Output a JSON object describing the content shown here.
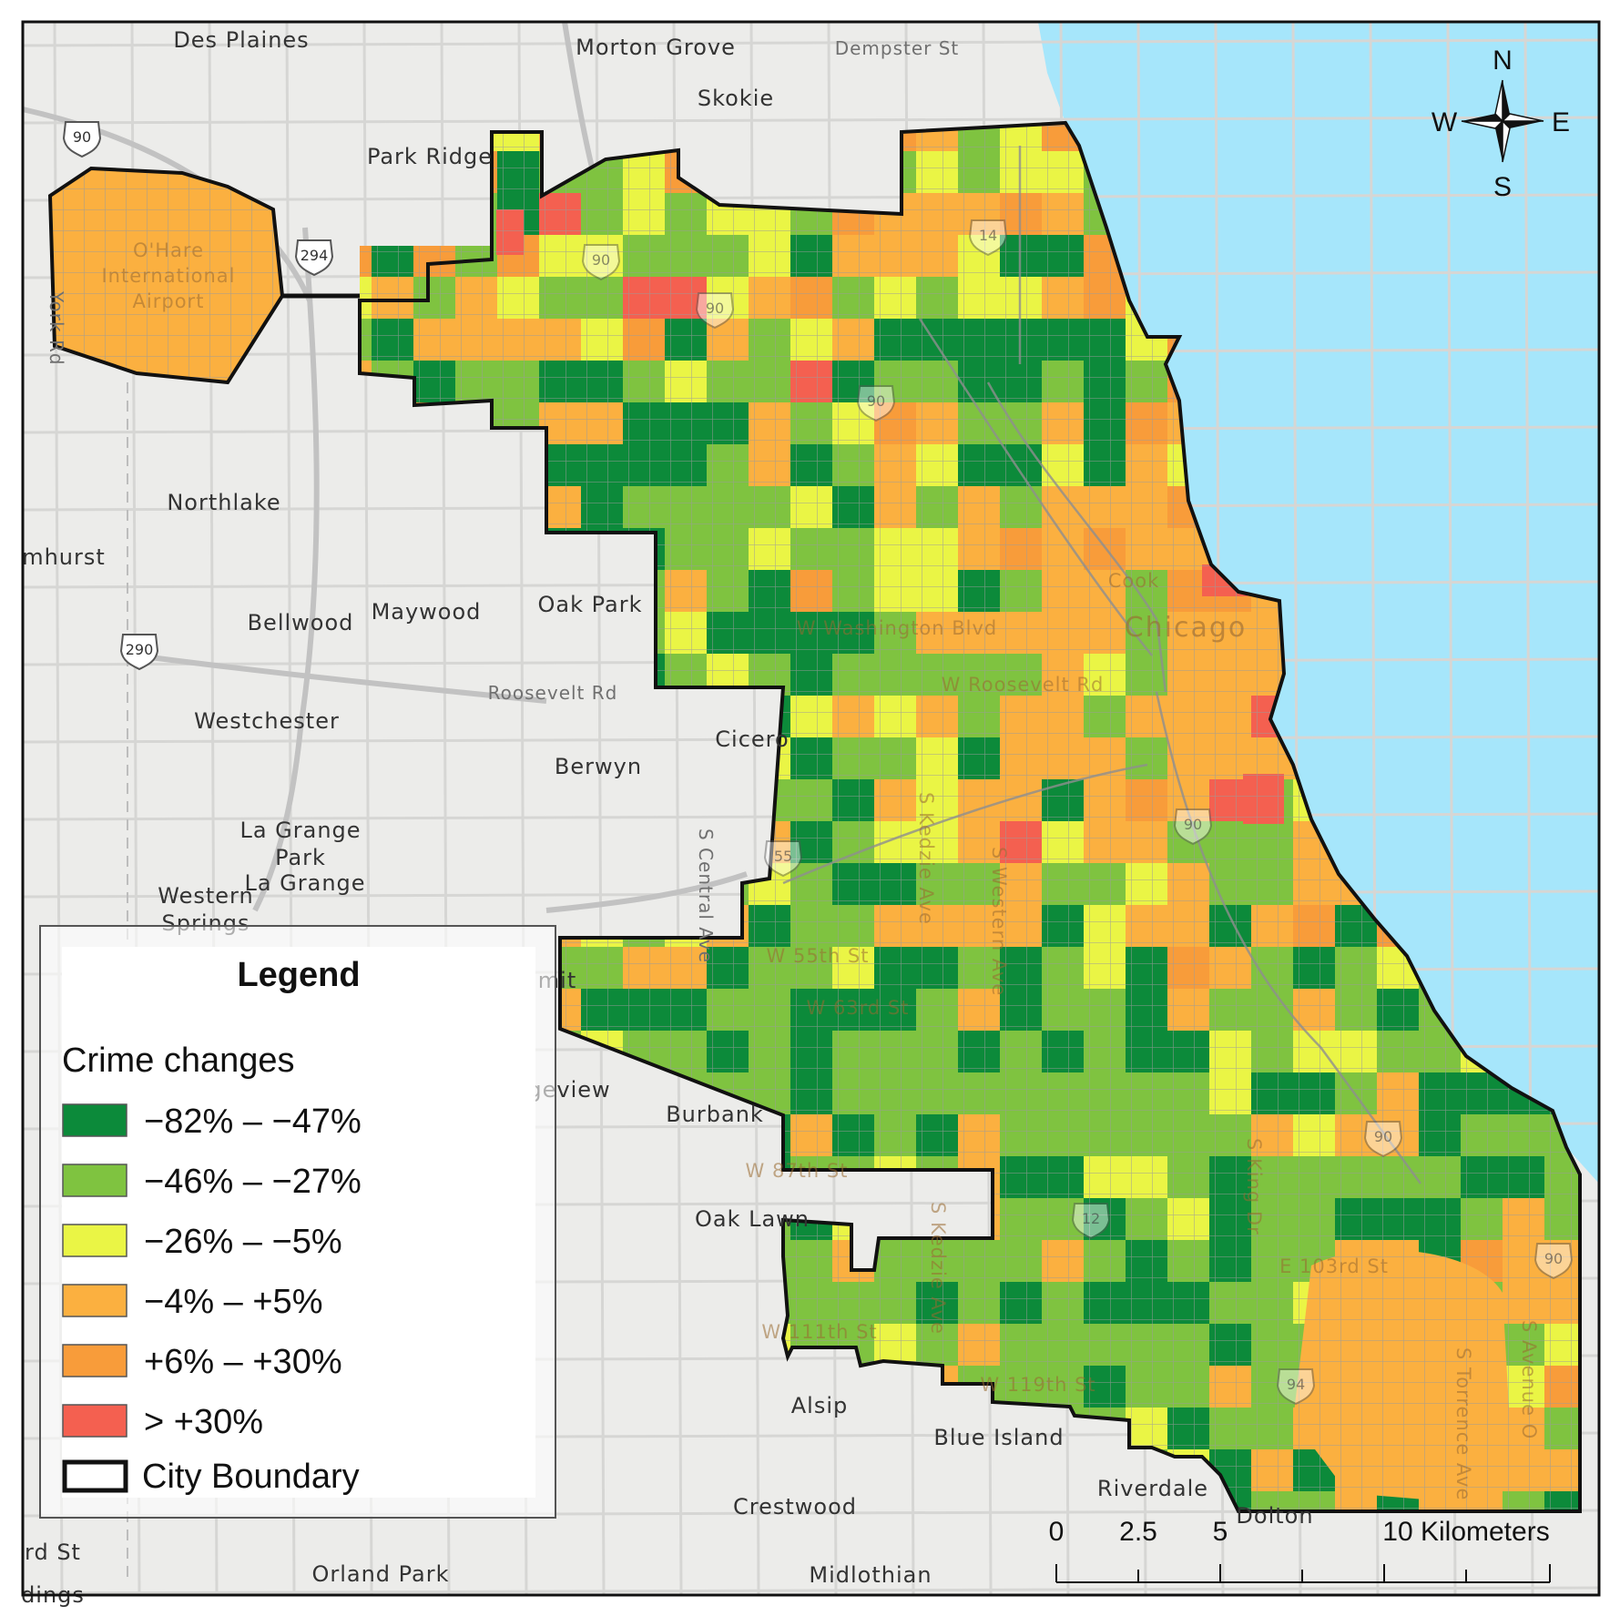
{
  "places": [
    "Des Plaines",
    "Morton Grove",
    "Dempster St",
    "Skokie",
    "Park Ridge",
    "O'Hare",
    "International",
    "Airport",
    "Northlake",
    "mhurst",
    "Oak Park",
    "Bellwood",
    "Maywood",
    "Roosevelt Rd",
    "Westchester",
    "Cicero",
    "Berwyn",
    "La Grange",
    "Park",
    "La Grange",
    "Western",
    "Springs",
    "mit",
    "geview",
    "Burbank",
    "Oak Lawn",
    "Alsip",
    "Blue Island",
    "Riverdale",
    "Crestwood",
    "Dolton",
    "Midlothian",
    "Orland Park",
    "rd St",
    "dings",
    "York Rd",
    "S Central Ave"
  ],
  "city_labels": {
    "city": "Chicago",
    "cook": "Cook",
    "streets": [
      "W Washington Blvd",
      "W Roosevelt Rd",
      "W 55th St",
      "W 63rd St",
      "W 87th St",
      "W 111th St",
      "W 119th St",
      "E 103rd St",
      "S Kedzie Ave",
      "S Western Ave",
      "S King Dr",
      "S Torrence Ave",
      "S Avenue O",
      "S Kedzie Ave"
    ]
  },
  "shields": [
    "90",
    "294",
    "290",
    "90",
    "90",
    "14",
    "90",
    "90",
    "55",
    "12",
    "94",
    "90",
    "90"
  ],
  "compass": {
    "n": "N",
    "s": "S",
    "e": "E",
    "w": "W"
  },
  "scale_bar": {
    "ticks": [
      "0",
      "2.5",
      "5",
      "10 Kilometers"
    ]
  },
  "legend": {
    "title": "Legend",
    "subtitle": "Crime changes",
    "items": [
      {
        "label": "−82%  –  −47%",
        "color": "#0c8a3a"
      },
      {
        "label": "−46%  – −27%",
        "color": "#7fc340"
      },
      {
        "label": "−26%  –  −5%",
        "color": "#eaf545"
      },
      {
        "label": "−4%  –  +5%",
        "color": "#fbb040"
      },
      {
        "label": "+6% – +30%",
        "color": "#f89c3a"
      },
      {
        "label": ">  +30%",
        "color": "#f46050"
      }
    ],
    "boundary_label": "City Boundary"
  },
  "colors": {
    "water": "#a6e6fb",
    "land": "#ececea",
    "road": "#c8c8c8",
    "grid_line": "#9a9a9a",
    "boundary": "#111111"
  }
}
